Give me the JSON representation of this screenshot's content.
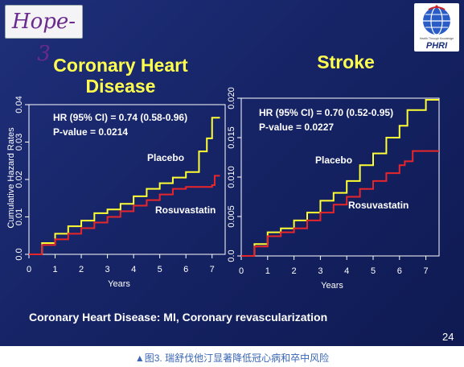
{
  "logo": {
    "hope": "Hope-3",
    "phri": "PHRI",
    "phri_sub": "Health Through Knowledge"
  },
  "panels": [
    {
      "title_line1": "Coronary Heart",
      "title_line2": "Disease",
      "ylabel": "Cumulative Hazard Rates",
      "annot_hr": "HR (95% CI) = 0.74 (0.58-0.96)",
      "annot_p": "P-value = 0.0214",
      "label_placebo": "Placebo",
      "label_rosuva": "Rosuvastatin",
      "xlabel": "Years"
    },
    {
      "title_line1": "Stroke",
      "title_line2": "",
      "ylabel": "",
      "annot_hr": "HR (95% CI) = 0.70 (0.52-0.95)",
      "annot_p": "P-value = 0.0227",
      "label_placebo": "Placebo",
      "label_rosuva": "Rosuvastatin",
      "xlabel": "Years"
    }
  ],
  "footnote": "Coronary Heart Disease: MI, Coronary revascularization",
  "page_number": "24",
  "caption": "▲图3. 瑞舒伐他汀显著降低冠心病和卒中风险",
  "colors": {
    "placebo": "#ffff33",
    "rosuvastatin": "#e8262a",
    "background": "#1a2a6c"
  },
  "chart_data": [
    {
      "type": "line",
      "title": "Coronary Heart Disease",
      "xlabel": "Years",
      "ylabel": "Cumulative Hazard Rates",
      "xlim": [
        0,
        7.5
      ],
      "ylim": [
        0,
        0.04
      ],
      "xticks": [
        "0",
        "1",
        "2",
        "3",
        "4",
        "5",
        "6",
        "7"
      ],
      "yticks": [
        "0.0",
        "0.01",
        "0.02",
        "0.03",
        "0.04"
      ],
      "series": [
        {
          "name": "Placebo",
          "x": [
            0,
            0.5,
            1,
            1.5,
            2,
            2.5,
            3,
            3.5,
            4,
            4.5,
            5,
            5.5,
            6,
            6.5,
            6.8,
            7,
            7.3
          ],
          "y": [
            0,
            0.003,
            0.0055,
            0.0075,
            0.009,
            0.011,
            0.012,
            0.0135,
            0.0155,
            0.0175,
            0.019,
            0.0205,
            0.022,
            0.0275,
            0.031,
            0.0365,
            0.0365
          ]
        },
        {
          "name": "Rosuvastatin",
          "x": [
            0,
            0.5,
            1,
            1.5,
            2,
            2.5,
            3,
            3.5,
            4,
            4.5,
            5,
            5.5,
            6,
            6.5,
            7,
            7.1,
            7.3
          ],
          "y": [
            0,
            0.0025,
            0.004,
            0.0055,
            0.007,
            0.0085,
            0.01,
            0.0115,
            0.013,
            0.0145,
            0.016,
            0.0175,
            0.018,
            0.018,
            0.0185,
            0.021,
            0.021
          ]
        }
      ],
      "legend": "inline labels"
    },
    {
      "type": "line",
      "title": "Stroke",
      "xlabel": "Years",
      "ylabel": "",
      "xlim": [
        0,
        7.5
      ],
      "ylim": [
        0,
        0.02
      ],
      "xticks": [
        "0",
        "1",
        "2",
        "3",
        "4",
        "5",
        "6",
        "7"
      ],
      "yticks": [
        "0.0",
        "0.005",
        "0.010",
        "0.015",
        "0.020"
      ],
      "series": [
        {
          "name": "Placebo",
          "x": [
            0,
            0.5,
            1,
            1.5,
            2,
            2.5,
            3,
            3.5,
            4,
            4.5,
            5,
            5.5,
            6,
            6.3,
            6.6,
            7,
            7.5
          ],
          "y": [
            0,
            0.0015,
            0.003,
            0.0035,
            0.0045,
            0.0055,
            0.007,
            0.008,
            0.0095,
            0.0115,
            0.013,
            0.015,
            0.0165,
            0.0185,
            0.0185,
            0.0198,
            0.0198
          ]
        },
        {
          "name": "Rosuvastatin",
          "x": [
            0,
            0.5,
            1,
            1.5,
            2,
            2.5,
            3,
            3.5,
            4,
            4.5,
            5,
            5.5,
            6,
            6.2,
            6.5,
            7,
            7.5
          ],
          "y": [
            0,
            0.0012,
            0.0025,
            0.003,
            0.0035,
            0.0045,
            0.0055,
            0.0065,
            0.0075,
            0.0085,
            0.0095,
            0.0105,
            0.0115,
            0.012,
            0.0133,
            0.0133,
            0.0133
          ]
        }
      ],
      "legend": "inline labels"
    }
  ]
}
